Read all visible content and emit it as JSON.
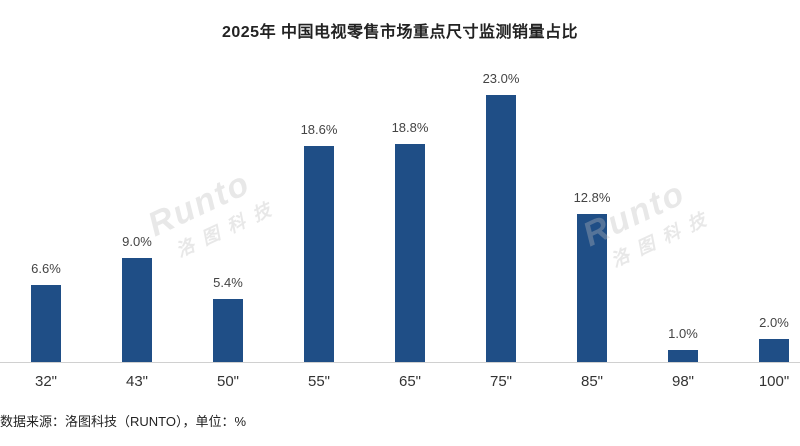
{
  "title": "2025年 中国电视零售市场重点尺寸监测销量占比",
  "source": "数据来源：洛图科技（RUNTO），单位：%",
  "watermark": {
    "latin": "Runto",
    "chinese": "洛图科技"
  },
  "colors": {
    "bar": "#1f4e86",
    "axis": "#d0d0d0"
  },
  "chart_data": {
    "type": "bar",
    "title": "2025年 中国电视零售市场重点尺寸监测销量占比",
    "xlabel": "",
    "ylabel": "",
    "unit": "%",
    "categories": [
      "32\"",
      "43\"",
      "50\"",
      "55\"",
      "65\"",
      "75\"",
      "85\"",
      "98\"",
      "100\""
    ],
    "values": [
      6.6,
      9.0,
      5.4,
      18.6,
      18.8,
      23.0,
      12.8,
      1.0,
      2.0
    ],
    "labels": [
      "6.6%",
      "9.0%",
      "5.4%",
      "18.6%",
      "18.8%",
      "23.0%",
      "12.8%",
      "1.0%",
      "2.0%"
    ],
    "ylim": [
      0,
      25
    ],
    "grid": false,
    "legend": null
  }
}
